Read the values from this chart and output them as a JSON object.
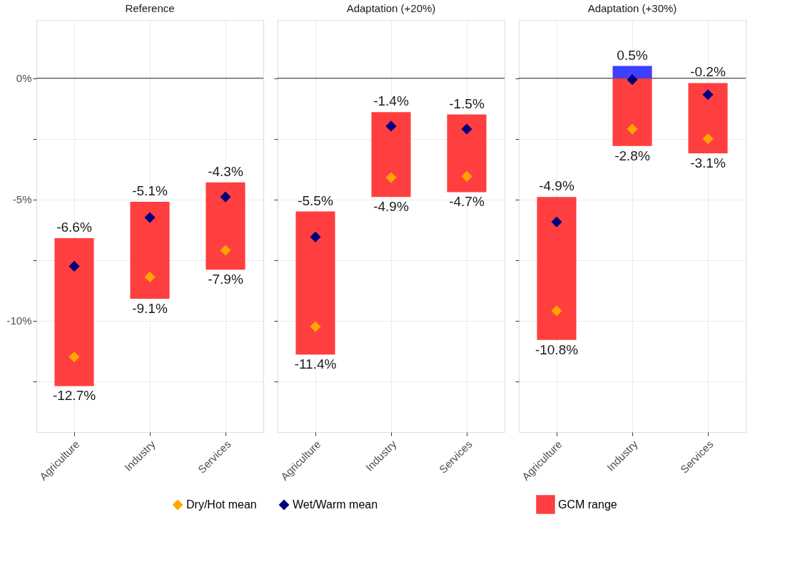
{
  "chart_data": [
    {
      "type": "bar",
      "title": "Reference",
      "categories": [
        "Agriculture",
        "Industry",
        "Services"
      ],
      "series": [
        {
          "type": "bar",
          "name": "GCM range",
          "color": "#ff3f3f",
          "base": [
            -12.7,
            -9.1,
            -7.9
          ],
          "values": [
            6.1,
            4.0,
            3.6
          ]
        },
        {
          "type": "scatter",
          "name": "Dry/Hot mean",
          "color": "#ffa500",
          "marker": "diamond",
          "x": [
            "Agriculture",
            "Industry",
            "Services"
          ],
          "values": [
            -11.5,
            -8.2,
            -7.1
          ]
        },
        {
          "type": "scatter",
          "name": "Wet/Warm mean",
          "color": "#00007f",
          "marker": "diamond",
          "x": [
            "Agriculture",
            "Industry",
            "Services"
          ],
          "values": [
            -7.76,
            -5.75,
            -4.9
          ]
        }
      ],
      "ylim": [
        -14.6,
        2.4
      ],
      "yticks": [
        {
          "value": -12.5,
          "label": null
        },
        {
          "value": -10,
          "label": "-10%"
        },
        {
          "value": -7.5,
          "label": null
        },
        {
          "value": -5,
          "label": "-5%"
        },
        {
          "value": -2.5,
          "label": null
        },
        {
          "value": 0,
          "label": "0%"
        }
      ],
      "grid": true,
      "legend": "bottom",
      "ref_lines": [
        {
          "axis": "y",
          "value": 0,
          "color": "#555555"
        }
      ],
      "annotations": [
        {
          "text": "-6.6%",
          "x": "Agriculture",
          "y": -6.6
        },
        {
          "text": "-12.7%",
          "x": "Agriculture",
          "y": -12.7
        },
        {
          "text": "-5.1%",
          "x": "Industry",
          "y": -5.1
        },
        {
          "text": "-9.1%",
          "x": "Industry",
          "y": -9.1
        },
        {
          "text": "-4.3%",
          "x": "Services",
          "y": -4.3
        },
        {
          "text": "-7.9%",
          "x": "Services",
          "y": -7.9
        }
      ]
    },
    {
      "type": "bar",
      "title": "Adaptation (+20%)",
      "categories": [
        "Agriculture",
        "Industry",
        "Services"
      ],
      "series": [
        {
          "type": "bar",
          "name": "GCM range",
          "color": "#ff3f3f",
          "base": [
            -11.4,
            -4.9,
            -4.7
          ],
          "values": [
            5.9,
            3.5,
            3.2
          ]
        },
        {
          "type": "scatter",
          "name": "Dry/Hot mean",
          "color": "#ffa500",
          "marker": "diamond",
          "x": [
            "Agriculture",
            "Industry",
            "Services"
          ],
          "values": [
            -10.25,
            -4.1,
            -4.05
          ]
        },
        {
          "type": "scatter",
          "name": "Wet/Warm mean",
          "color": "#00007f",
          "marker": "diamond",
          "x": [
            "Agriculture",
            "Industry",
            "Services"
          ],
          "values": [
            -6.55,
            -1.98,
            -2.1
          ]
        }
      ],
      "ylim": [
        -14.6,
        2.4
      ],
      "yticks": [
        {
          "value": -12.5,
          "label": null
        },
        {
          "value": -10,
          "label": null
        },
        {
          "value": -7.5,
          "label": null
        },
        {
          "value": -5,
          "label": null
        },
        {
          "value": -2.5,
          "label": null
        },
        {
          "value": 0,
          "label": null
        }
      ],
      "tick_labels": "x",
      "grid": true,
      "legend": "bottom",
      "ref_lines": [
        {
          "axis": "y",
          "value": 0,
          "color": "#555555"
        }
      ],
      "annotations": [
        {
          "text": "-5.5%",
          "x": "Agriculture",
          "y": -5.5
        },
        {
          "text": "-11.4%",
          "x": "Agriculture",
          "y": -11.4
        },
        {
          "text": "-1.4%",
          "x": "Industry",
          "y": -1.4
        },
        {
          "text": "-4.9%",
          "x": "Industry",
          "y": -4.9
        },
        {
          "text": "-1.5%",
          "x": "Services",
          "y": -1.5
        },
        {
          "text": "-4.7%",
          "x": "Services",
          "y": -4.7
        }
      ]
    },
    {
      "type": "bar",
      "title": "Adaptation (+30%)",
      "categories": [
        "Agriculture",
        "Industry",
        "Services"
      ],
      "series": [
        {
          "type": "bar",
          "name": "GCM range",
          "color": "#ff3f3f",
          "base": [
            -10.8,
            -2.8,
            -3.1
          ],
          "values": [
            5.9,
            2.8,
            2.9
          ]
        },
        {
          "type": "bar",
          "color": "#3f3fff",
          "base": [
            null,
            0,
            null
          ],
          "values": [
            null,
            0.5,
            null
          ]
        },
        {
          "type": "scatter",
          "name": "Dry/Hot mean",
          "color": "#ffa500",
          "marker": "diamond",
          "x": [
            "Agriculture",
            "Industry",
            "Services"
          ],
          "values": [
            -9.6,
            -2.1,
            -2.5
          ]
        },
        {
          "type": "scatter",
          "name": "Wet/Warm mean",
          "color": "#00007f",
          "marker": "diamond",
          "x": [
            "Agriculture",
            "Industry",
            "Services"
          ],
          "values": [
            -5.93,
            -0.06,
            -0.68
          ]
        }
      ],
      "ylim": [
        -14.6,
        2.4
      ],
      "yticks": [
        {
          "value": -12.5,
          "label": null
        },
        {
          "value": -10,
          "label": null
        },
        {
          "value": -7.5,
          "label": null
        },
        {
          "value": -5,
          "label": null
        },
        {
          "value": -2.5,
          "label": null
        },
        {
          "value": 0,
          "label": null
        }
      ],
      "tick_labels": "x",
      "grid": true,
      "legend": "bottom",
      "ref_lines": [
        {
          "axis": "y",
          "value": 0,
          "color": "#555555"
        }
      ],
      "annotations": [
        {
          "text": "-4.9%",
          "x": "Agriculture",
          "y": -4.9
        },
        {
          "text": "-10.8%",
          "x": "Agriculture",
          "y": -10.8
        },
        {
          "text": "0.5%",
          "x": "Industry",
          "y": 0.5
        },
        {
          "text": "-2.8%",
          "x": "Industry",
          "y": -2.8
        },
        {
          "text": "-0.2%",
          "x": "Services",
          "y": -0.2
        },
        {
          "text": "-3.1%",
          "x": "Services",
          "y": -3.1
        }
      ]
    }
  ]
}
